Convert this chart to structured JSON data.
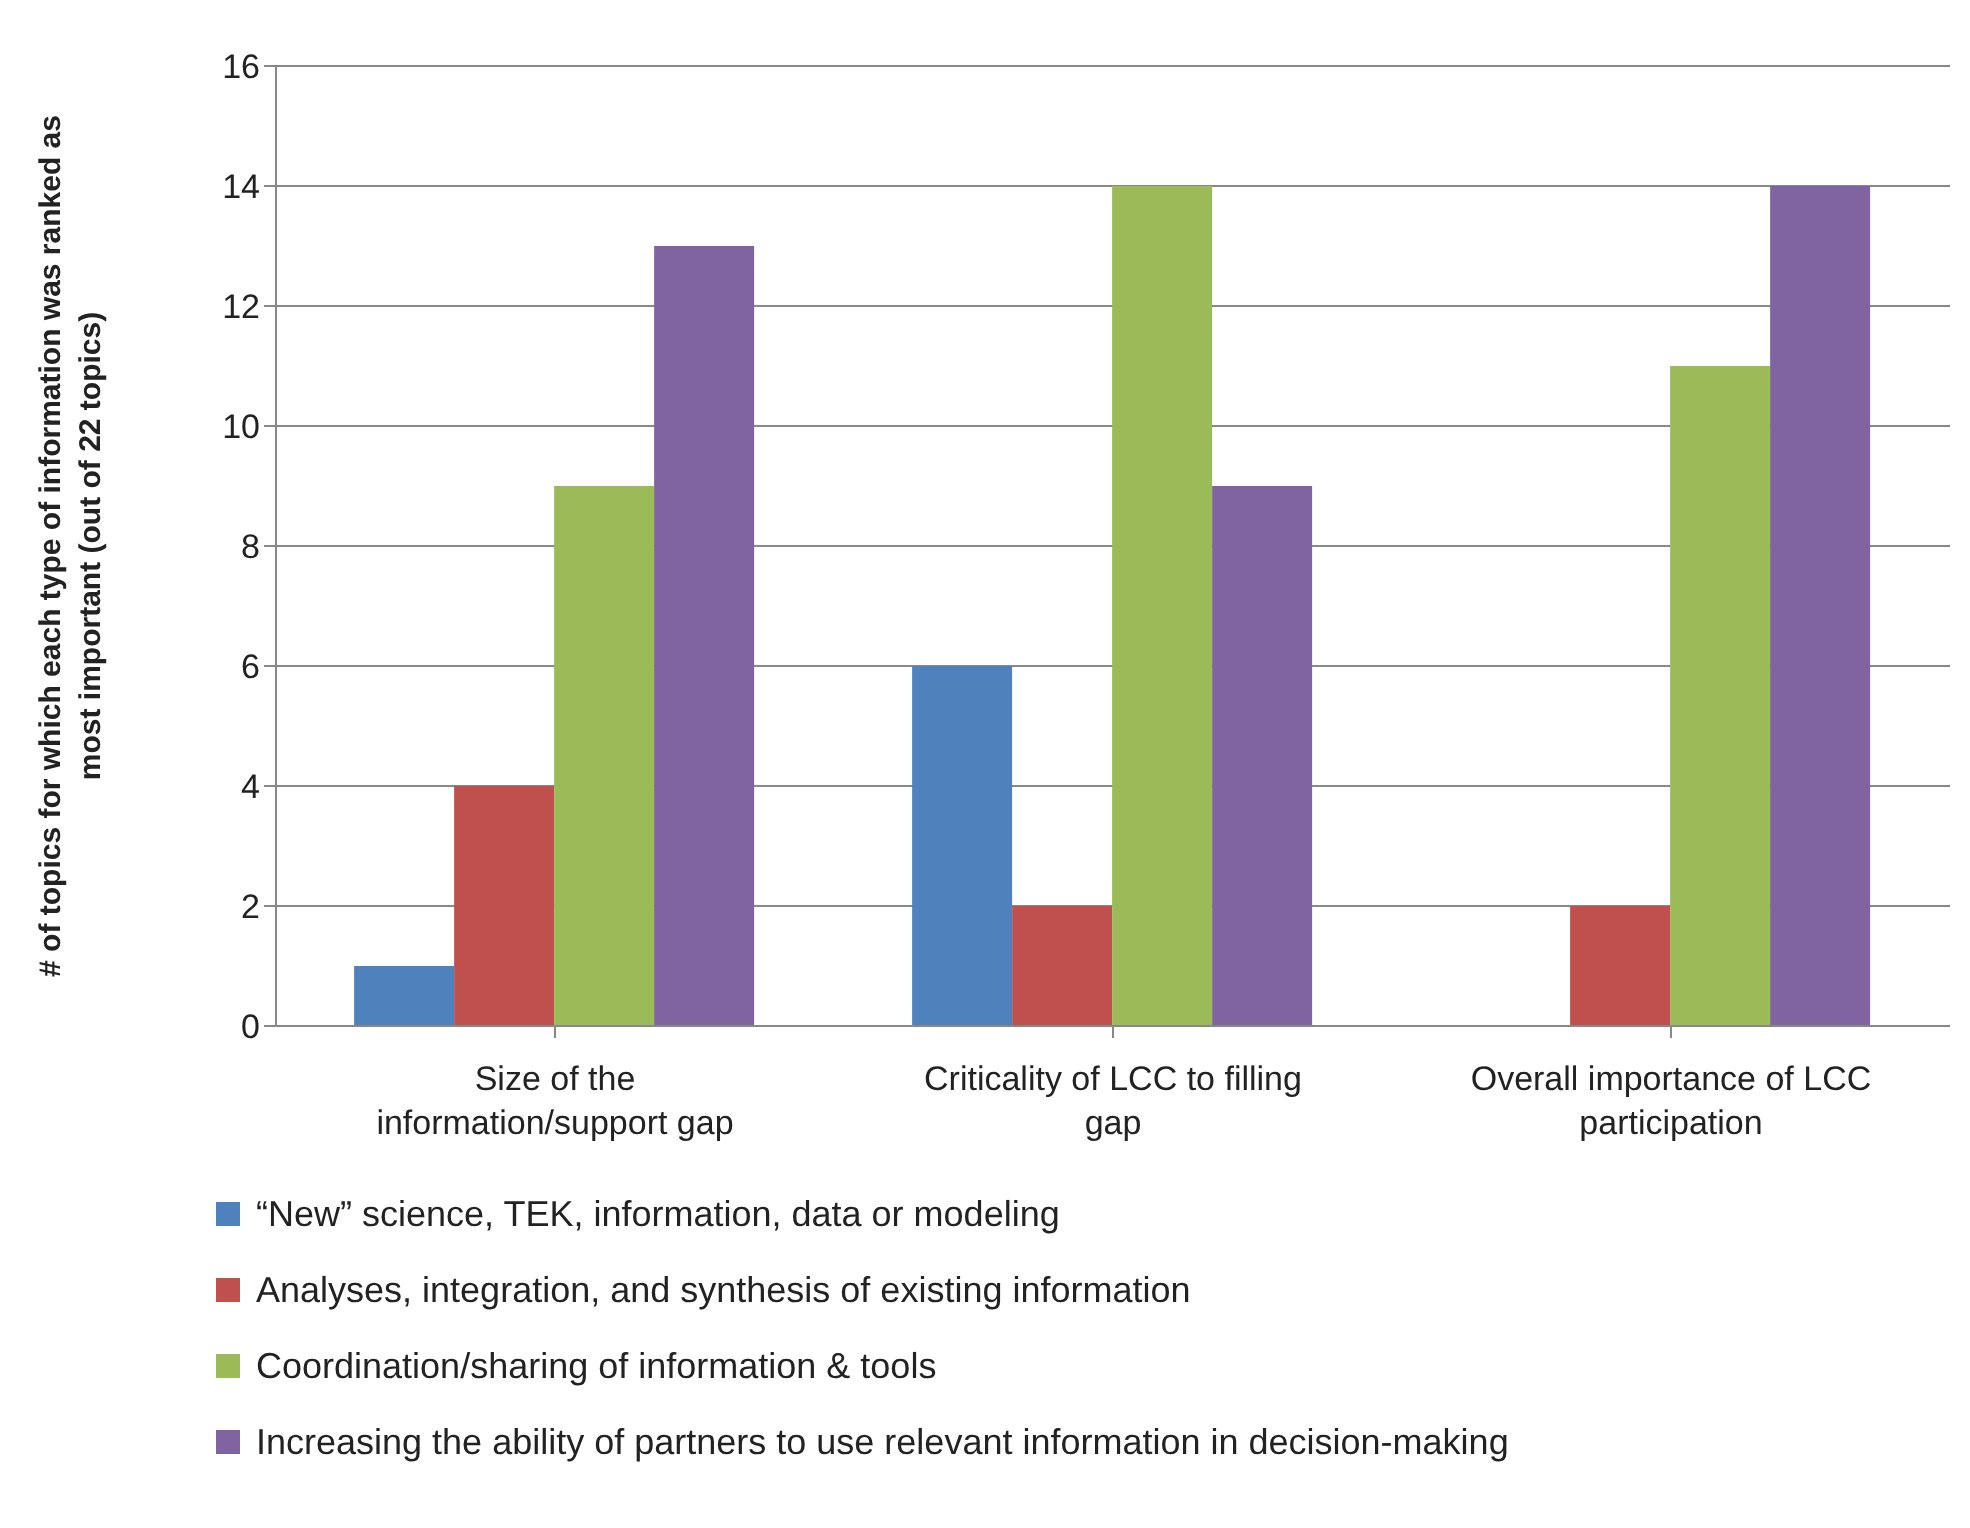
{
  "chart_data": {
    "type": "bar",
    "ylabel": "# of topics for which each type of information was ranked as most important (out of 22 topics)",
    "categories": [
      "Size of the information/support gap",
      "Criticality of LCC to filling gap",
      "Overall importance of LCC participation"
    ],
    "series": [
      {
        "name": "“New” science, TEK, information, data or modeling",
        "color": "#4f81bd",
        "values": [
          1,
          6,
          0
        ]
      },
      {
        "name": "Analyses, integration, and synthesis of existing information",
        "color": "#c0504d",
        "values": [
          4,
          2,
          2
        ]
      },
      {
        "name": "Coordination/sharing of information & tools",
        "color": "#9bbb59",
        "values": [
          9,
          14,
          11
        ]
      },
      {
        "name": "Increasing the ability of partners to use relevant information in decision-making",
        "color": "#8064a2",
        "values": [
          13,
          9,
          14
        ]
      }
    ],
    "ylim": [
      0,
      16
    ],
    "yticks": [
      0,
      2,
      4,
      6,
      8,
      10,
      12,
      14,
      16
    ],
    "grid": "y",
    "legend": "bottom"
  }
}
